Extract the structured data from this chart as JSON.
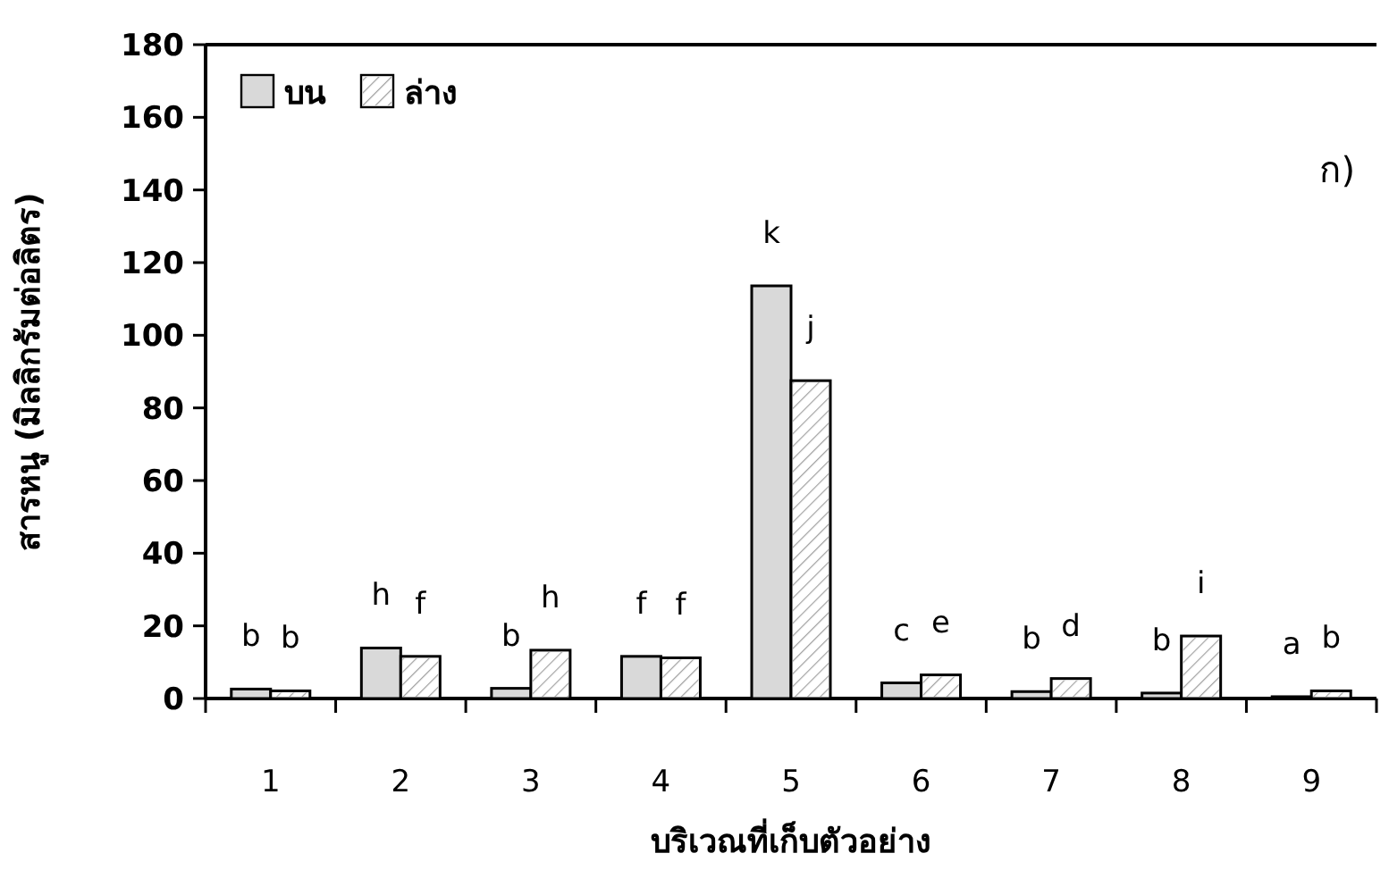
{
  "chart_data": {
    "type": "bar",
    "xlabel": "บริเวณที่เก็บตัวอย่าง",
    "ylabel": "สารหนู (มิลลิกรัมต่อลิตร)",
    "categories": [
      "1",
      "2",
      "3",
      "4",
      "5",
      "6",
      "7",
      "8",
      "9"
    ],
    "series": [
      {
        "name": "บน",
        "color": "#d9d9d9",
        "values": [
          2.6,
          13.9,
          2.8,
          11.6,
          113.6,
          4.3,
          1.9,
          1.5,
          0.5
        ]
      },
      {
        "name": "ล่าง",
        "color": "#ffffff",
        "values": [
          2.1,
          11.6,
          13.3,
          11.2,
          87.5,
          6.5,
          5.5,
          17.2,
          2.1
        ]
      }
    ],
    "ylim": [
      0,
      180
    ],
    "yticks": [
      0,
      20,
      40,
      60,
      80,
      100,
      120,
      140,
      160,
      180
    ],
    "legend": "top left",
    "grid": false,
    "annotations": [
      "ก)",
      {
        "text": "b",
        "x": "1",
        "y": 2.6
      },
      {
        "text": "b",
        "x": "1",
        "y": 2.1
      },
      {
        "text": "h",
        "x": "2",
        "y": 13.9
      },
      {
        "text": "f",
        "x": "2",
        "y": 11.6
      },
      {
        "text": "b",
        "x": "3",
        "y": 2.8
      },
      {
        "text": "h",
        "x": "3",
        "y": 13.3
      },
      {
        "text": "f",
        "x": "4",
        "y": 11.6
      },
      {
        "text": "f",
        "x": "4",
        "y": 11.2
      },
      {
        "text": "k",
        "x": "5",
        "y": 113.6
      },
      {
        "text": "j",
        "x": "5",
        "y": 87.5
      },
      {
        "text": "c",
        "x": "6",
        "y": 4.3
      },
      {
        "text": "e",
        "x": "6",
        "y": 6.5
      },
      {
        "text": "b",
        "x": "7",
        "y": 1.9
      },
      {
        "text": "d",
        "x": "7",
        "y": 5.5
      },
      {
        "text": "b",
        "x": "8",
        "y": 1.5
      },
      {
        "text": "i",
        "x": "8",
        "y": 17.2
      },
      {
        "text": "a",
        "x": "9",
        "y": 0.5
      },
      {
        "text": "b",
        "x": "9",
        "y": 2.1
      }
    ]
  }
}
